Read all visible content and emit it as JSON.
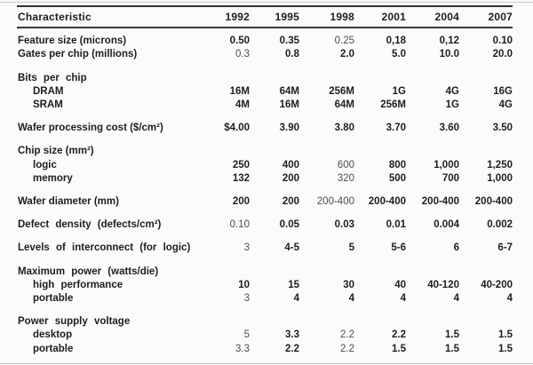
{
  "page": {
    "background": "#fbfbf9",
    "text_color": "#1e1e1e",
    "light_text_color": "#4d4d4d",
    "rule_color": "#333333"
  },
  "table": {
    "header": {
      "characteristic_label": "Characteristic",
      "years": [
        "1992",
        "1995",
        "1998",
        "2001",
        "2004",
        "2007"
      ]
    },
    "groups": [
      {
        "rows": [
          {
            "label": "Feature size (microns)",
            "indent": 0,
            "values": [
              "0.50",
              "0.35",
              "0.25",
              "0,18",
              "0,12",
              "0.10"
            ],
            "light": [
              2
            ]
          },
          {
            "label": "Gates per chip (millions)",
            "indent": 0,
            "values": [
              "0.3",
              "0.8",
              "2.0",
              "5.0",
              "10.0",
              "20.0"
            ],
            "light": [
              0
            ]
          }
        ]
      },
      {
        "rows": [
          {
            "label": "Bits per chip",
            "indent": 0,
            "spread": true,
            "values": [],
            "light": []
          },
          {
            "label": "DRAM",
            "indent": 1,
            "values": [
              "16M",
              "64M",
              "256M",
              "1G",
              "4G",
              "16G"
            ],
            "light": []
          },
          {
            "label": "SRAM",
            "indent": 1,
            "values": [
              "4M",
              "16M",
              "64M",
              "256M",
              "1G",
              "4G"
            ],
            "light": []
          }
        ]
      },
      {
        "rows": [
          {
            "label": "Wafer processing cost ($/cm²)",
            "indent": 0,
            "values": [
              "$4.00",
              "3.90",
              "3.80",
              "3.70",
              "3.60",
              "3.50"
            ],
            "light": []
          }
        ]
      },
      {
        "rows": [
          {
            "label": "Chip size (mm²)",
            "indent": 0,
            "values": [],
            "light": []
          },
          {
            "label": "logic",
            "indent": 1,
            "values": [
              "250",
              "400",
              "600",
              "800",
              "1,000",
              "1,250"
            ],
            "light": [
              2
            ]
          },
          {
            "label": "memory",
            "indent": 1,
            "values": [
              "132",
              "200",
              "320",
              "500",
              "700",
              "1,000"
            ],
            "light": [
              2
            ]
          }
        ]
      },
      {
        "rows": [
          {
            "label": "Wafer diameter (mm)",
            "indent": 0,
            "values": [
              "200",
              "200",
              "200-400",
              "200-400",
              "200-400",
              "200-400"
            ],
            "light": [
              2
            ]
          }
        ]
      },
      {
        "rows": [
          {
            "label": "Defect density (defects/cm²)",
            "indent": 0,
            "spread": true,
            "values": [
              "0.10",
              "0.05",
              "0.03",
              "0.01",
              "0.004",
              "0.002"
            ],
            "light": [
              0
            ]
          }
        ]
      },
      {
        "rows": [
          {
            "label": "Levels of interconnect (for logic)",
            "indent": 0,
            "spread": true,
            "values": [
              "3",
              "4-5",
              "5",
              "5-6",
              "6",
              "6-7"
            ],
            "light": [
              0
            ]
          }
        ]
      },
      {
        "rows": [
          {
            "label": "Maximum power (watts/die)",
            "indent": 0,
            "spread": true,
            "values": [],
            "light": []
          },
          {
            "label": "high performance",
            "indent": 1,
            "spread": true,
            "values": [
              "10",
              "15",
              "30",
              "40",
              "40-120",
              "40-200"
            ],
            "light": []
          },
          {
            "label": "portable",
            "indent": 1,
            "values": [
              "3",
              "4",
              "4",
              "4",
              "4",
              "4"
            ],
            "light": [
              0
            ]
          }
        ]
      },
      {
        "rows": [
          {
            "label": "Power supply voltage",
            "indent": 0,
            "spread": true,
            "values": [],
            "light": []
          },
          {
            "label": "desktop",
            "indent": 1,
            "values": [
              "5",
              "3.3",
              "2.2",
              "2.2",
              "1.5",
              "1.5"
            ],
            "light": [
              0,
              2
            ]
          },
          {
            "label": "portable",
            "indent": 1,
            "values": [
              "3.3",
              "2.2",
              "2.2",
              "1.5",
              "1.5",
              "1.5"
            ],
            "light": [
              0,
              2
            ]
          }
        ]
      }
    ]
  }
}
